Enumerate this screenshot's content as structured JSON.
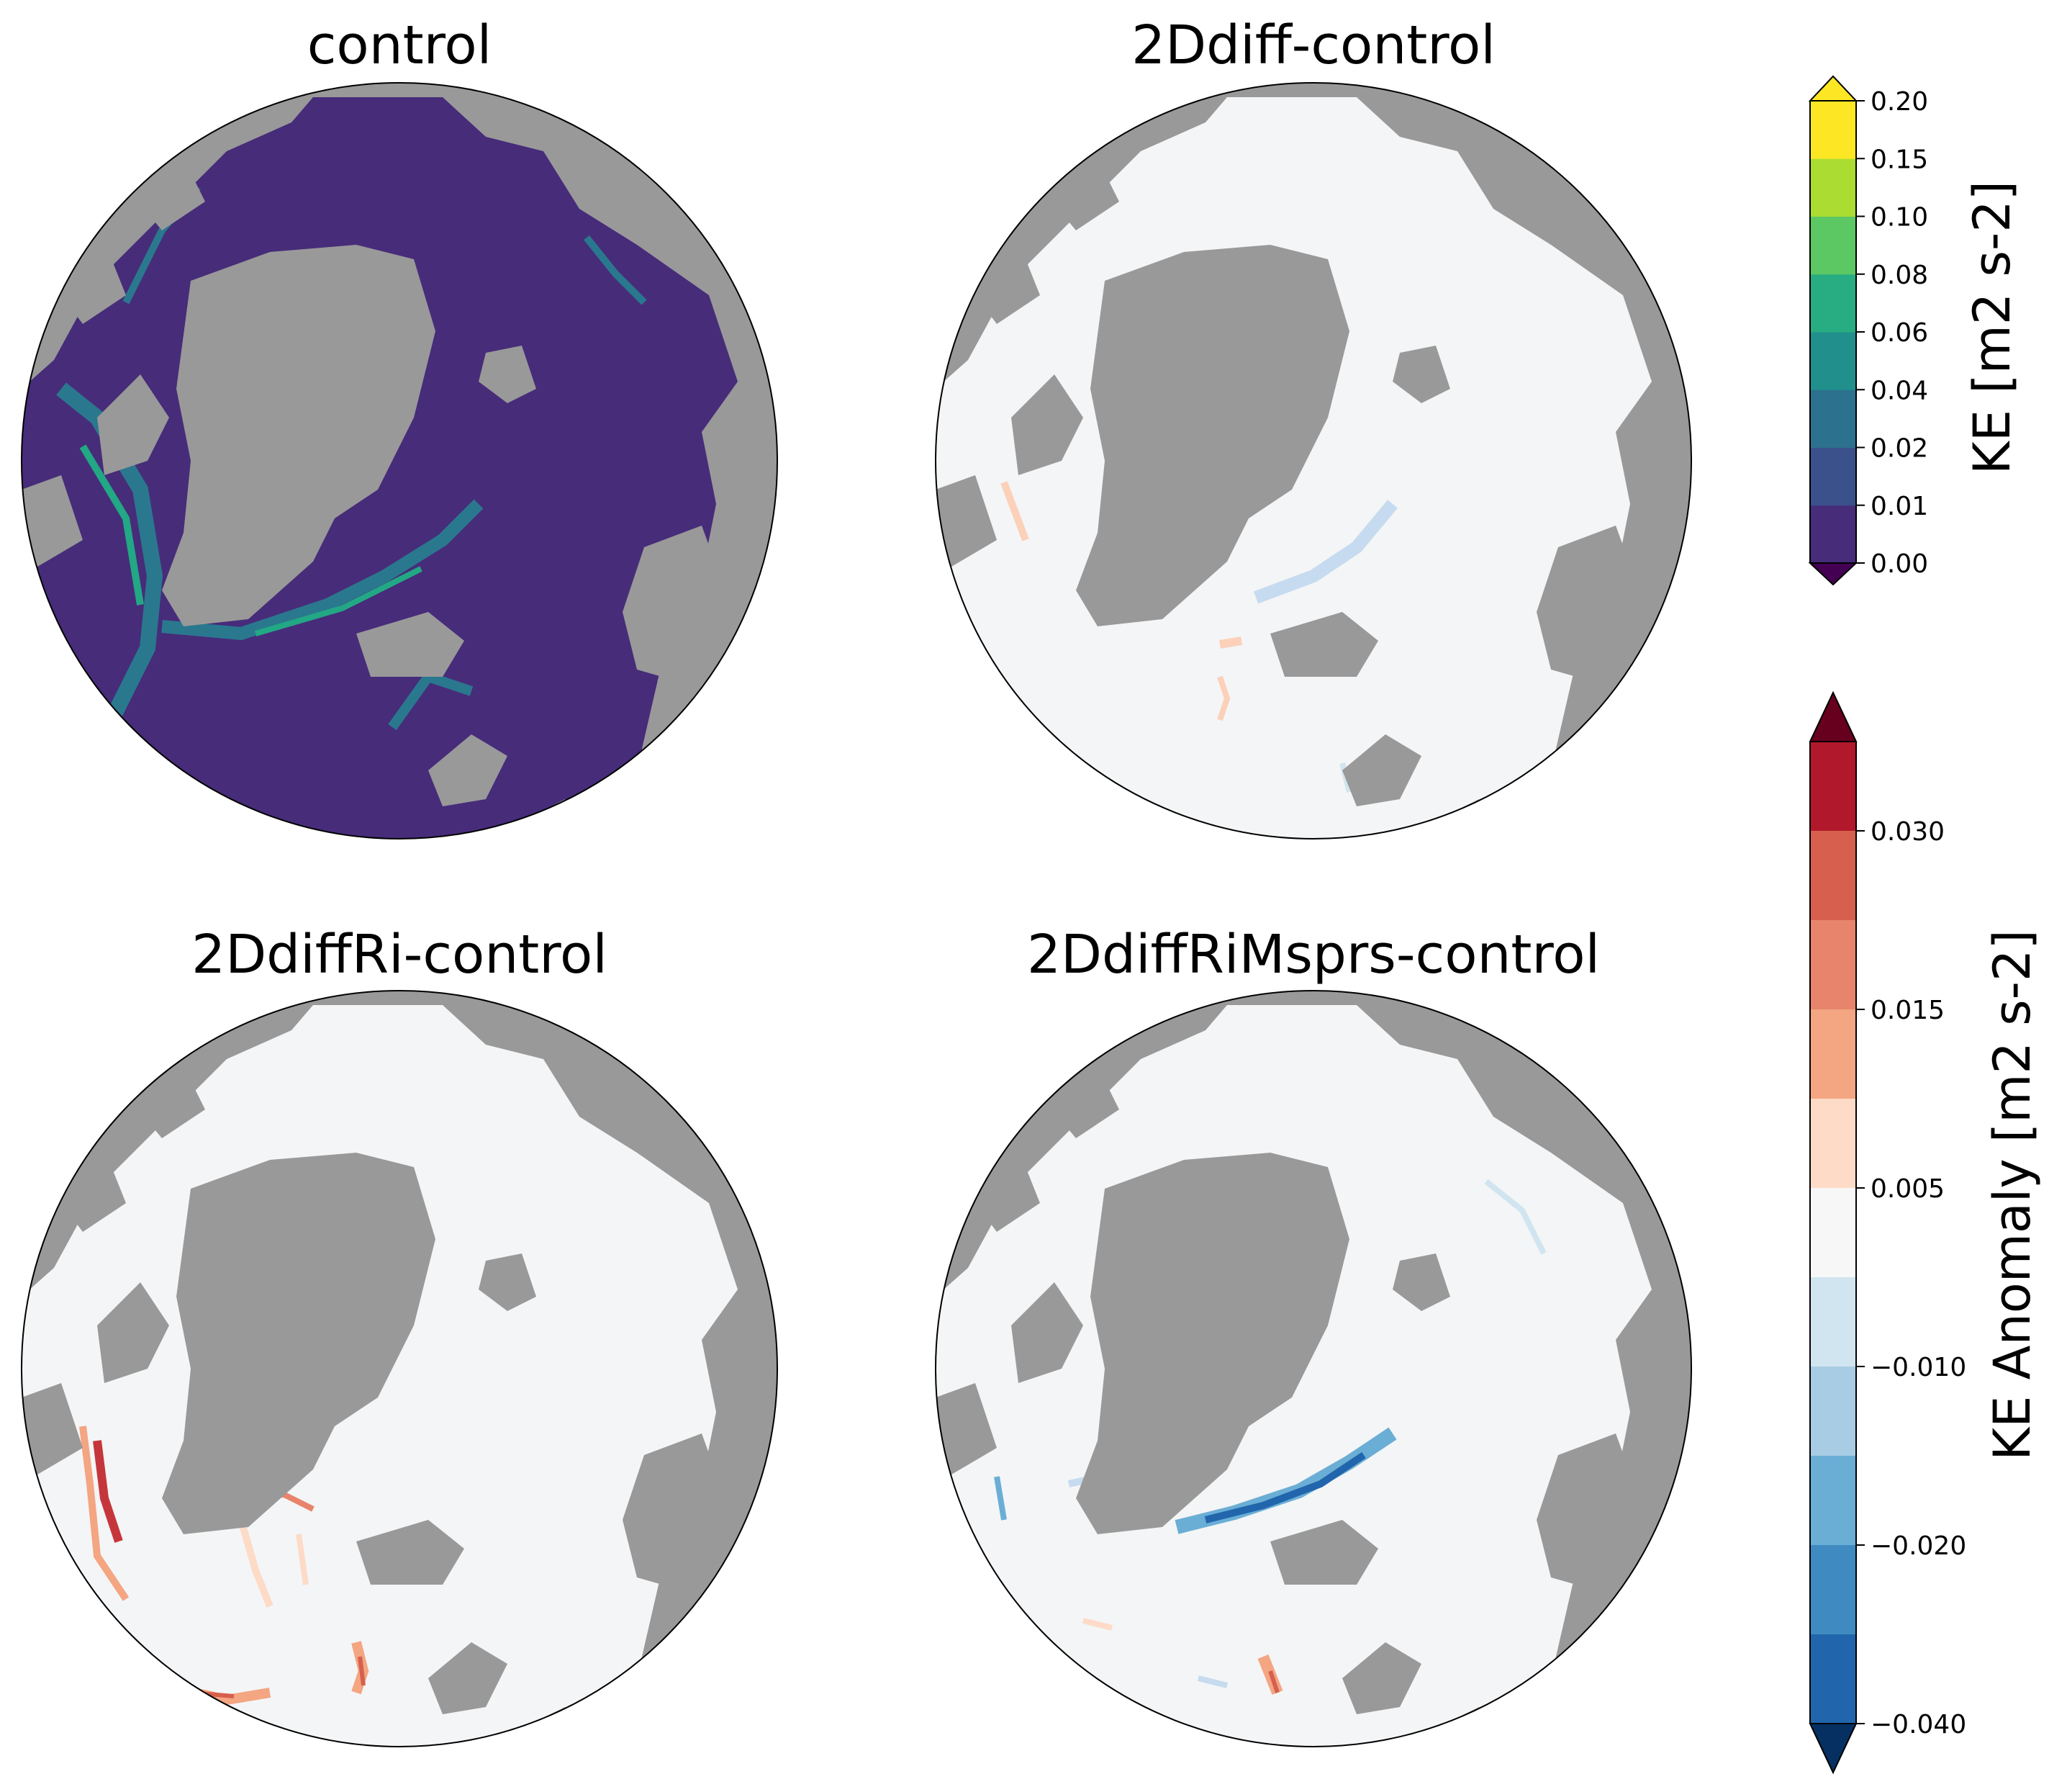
{
  "chart_data": [
    {
      "type": "heatmap",
      "title": "control",
      "projection": "orthographic polar view",
      "colorbar": "KE [m2 s-2]",
      "land_color": "#999999",
      "ocean_color": "#472c7a",
      "features": [
        {
          "kind": "boundary-current",
          "color": "#2a788e"
        },
        {
          "kind": "boundary-current",
          "color": "#22a884"
        }
      ]
    },
    {
      "type": "heatmap",
      "title": "2Ddiff-control",
      "projection": "orthographic polar view",
      "colorbar": "KE Anomaly [m2 s-2]",
      "land_color": "#999999",
      "ocean_color": "#f4f5f6",
      "features": [
        {
          "kind": "weak-negative",
          "color": "#c6dbef"
        },
        {
          "kind": "weak-positive",
          "color": "#fcd0b9"
        }
      ]
    },
    {
      "type": "heatmap",
      "title": "2DdiffRi-control",
      "projection": "orthographic polar view",
      "colorbar": "KE Anomaly [m2 s-2]",
      "land_color": "#999999",
      "ocean_color": "#f4f5f6",
      "features": [
        {
          "kind": "positive",
          "color": "#f4a582"
        },
        {
          "kind": "strong-positive",
          "color": "#c5363c"
        }
      ]
    },
    {
      "type": "heatmap",
      "title": "2DdiffRiMsprs-control",
      "projection": "orthographic polar view",
      "colorbar": "KE Anomaly [m2 s-2]",
      "land_color": "#999999",
      "ocean_color": "#f4f5f6",
      "features": [
        {
          "kind": "negative",
          "color": "#6aaed6"
        },
        {
          "kind": "strong-negative",
          "color": "#2166ac"
        },
        {
          "kind": "positive",
          "color": "#f4a582"
        }
      ]
    }
  ],
  "colorbars": {
    "ke": {
      "label": "KE [m2 s-2]",
      "ticks": [
        "0.00",
        "0.01",
        "0.02",
        "0.04",
        "0.06",
        "0.08",
        "0.10",
        "0.15",
        "0.20"
      ],
      "colors": [
        "#472c7a",
        "#3b518b",
        "#2c718e",
        "#21908d",
        "#27ad81",
        "#5cc863",
        "#aadc32",
        "#fde725"
      ],
      "under_color": "#440154",
      "over_color": "#fde725",
      "extend": "both"
    },
    "anomaly": {
      "label": "KE Anomaly [m2 s-2]",
      "ticks": [
        "0.030",
        "0.015",
        "0.005",
        "−0.010",
        "−0.020",
        "−0.040"
      ],
      "colors_top_to_bottom": [
        "#b2182b",
        "#d6604d",
        "#e8846c",
        "#f4a582",
        "#fddbc7",
        "#f7f7f7",
        "#d1e5f0",
        "#a7cce4",
        "#6aaed6",
        "#3f8bc1",
        "#2166ac"
      ],
      "over_color": "#67001f",
      "under_color": "#053061",
      "extend": "both"
    }
  }
}
